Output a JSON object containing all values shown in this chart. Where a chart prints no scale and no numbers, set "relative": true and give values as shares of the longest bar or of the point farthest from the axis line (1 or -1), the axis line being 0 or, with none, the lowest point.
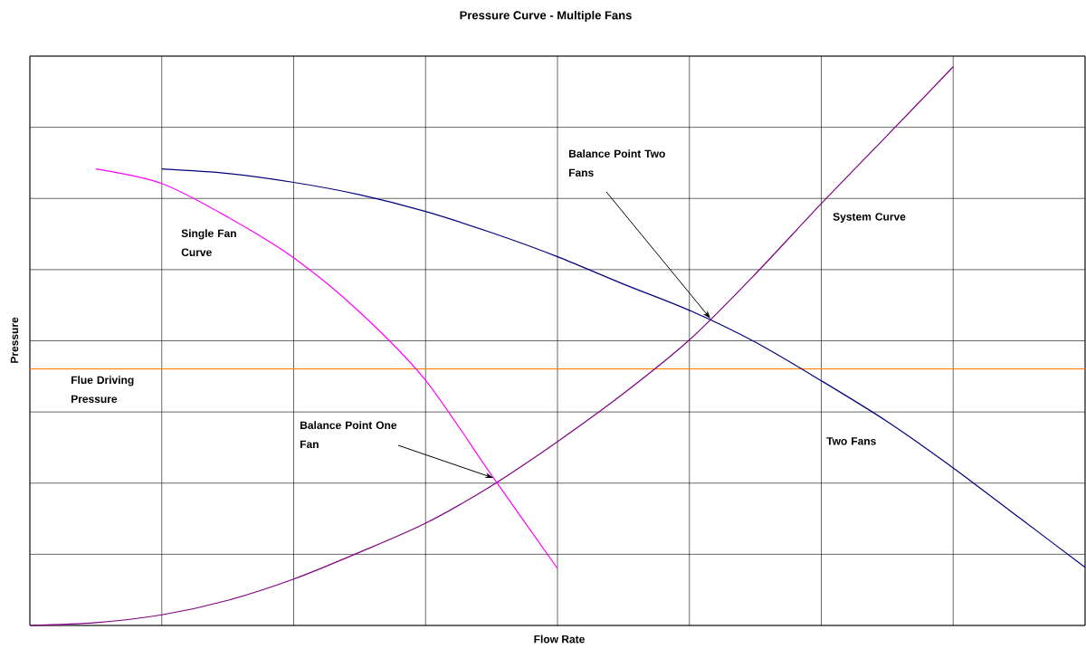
{
  "chart_data": {
    "type": "line",
    "title": "Pressure Curve - Multiple Fans",
    "xlabel": "Flow Rate",
    "ylabel": "Pressure",
    "relative": true,
    "grid": true,
    "tick_labels": false,
    "categories": [
      null,
      null,
      null,
      null,
      null,
      null,
      null,
      null,
      null,
      null,
      null,
      null,
      null,
      null,
      null,
      null,
      null
    ],
    "series": [
      {
        "name": "System Curve",
        "color": "#800080",
        "values": [
          0,
          0.005,
          0.019,
          0.045,
          0.083,
          0.131,
          0.183,
          0.25,
          0.329,
          0.415,
          0.511,
          0.629,
          0.755,
          0.877,
          1,
          null,
          null
        ]
      },
      {
        "name": "Single Fan Curve",
        "color": "#ff00ff",
        "values": [
          null,
          0.817,
          0.791,
          0.731,
          0.658,
          0.561,
          0.439,
          0.269,
          0.102,
          null,
          null,
          null,
          null,
          null,
          null,
          null,
          null
        ]
      },
      {
        "name": "Two Fans",
        "color": "#000080",
        "values": [
          null,
          null,
          0.817,
          0.809,
          0.793,
          0.771,
          0.741,
          0.703,
          0.66,
          0.611,
          0.564,
          0.507,
          0.438,
          0.365,
          0.282,
          0.193,
          0.104
        ]
      }
    ],
    "ref_lines": [
      {
        "axis": "y",
        "value": 0.459,
        "label": "Flue Driving Pressure",
        "color": "#ff8000"
      }
    ],
    "annotations": [
      "Balance Point One Fan",
      "Balance Point Two Fans"
    ]
  }
}
